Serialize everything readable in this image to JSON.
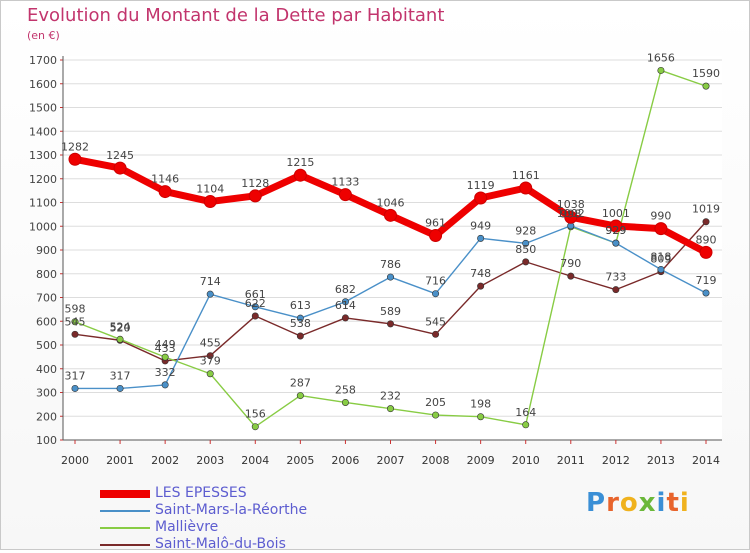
{
  "header": {
    "title": "Evolution du Montant de la Dette par Habitant",
    "unit": "(en €)"
  },
  "brand": {
    "letters": [
      "P",
      "r",
      "o",
      "x",
      "i",
      "t",
      "i"
    ],
    "colors": [
      "#3a8fd6",
      "#e8642c",
      "#f0b21e",
      "#6bb83a",
      "#3a8fd6",
      "#e8642c",
      "#f0b21e"
    ]
  },
  "chart_data": {
    "type": "line",
    "title": "Evolution du Montant de la Dette par Habitant",
    "ylabel": "(en €)",
    "x": [
      "2000",
      "2001",
      "2002",
      "2003",
      "2004",
      "2005",
      "2006",
      "2007",
      "2008",
      "2009",
      "2010",
      "2011",
      "2012",
      "2013",
      "2014"
    ],
    "ylim": [
      100,
      1700
    ],
    "yticks": [
      100,
      200,
      300,
      400,
      500,
      600,
      700,
      800,
      900,
      1000,
      1100,
      1200,
      1300,
      1400,
      1500,
      1600,
      1700
    ],
    "grid": "horizontal",
    "legend": "bottom-left",
    "series": [
      {
        "name": "LES EPESSES",
        "color": "#ee0000",
        "values": [
          1282,
          1245,
          1146,
          1104,
          1128,
          1215,
          1133,
          1046,
          961,
          1119,
          1161,
          1038,
          1001,
          990,
          890
        ]
      },
      {
        "name": "Saint-Mars-la-Réorthe",
        "color": "#4a90c8",
        "values": [
          317,
          317,
          332,
          714,
          661,
          613,
          682,
          786,
          716,
          949,
          928,
          1002,
          929,
          818,
          719
        ]
      },
      {
        "name": "Mallièvre",
        "color": "#88cc44",
        "values": [
          598,
          524,
          449,
          379,
          156,
          287,
          258,
          232,
          205,
          198,
          164,
          998,
          929,
          1656,
          1590
        ]
      },
      {
        "name": "Saint-Malô-du-Bois",
        "color": "#7a2a2a",
        "values": [
          545,
          520,
          433,
          455,
          622,
          538,
          614,
          589,
          545,
          748,
          850,
          790,
          733,
          809,
          1019
        ]
      }
    ]
  }
}
